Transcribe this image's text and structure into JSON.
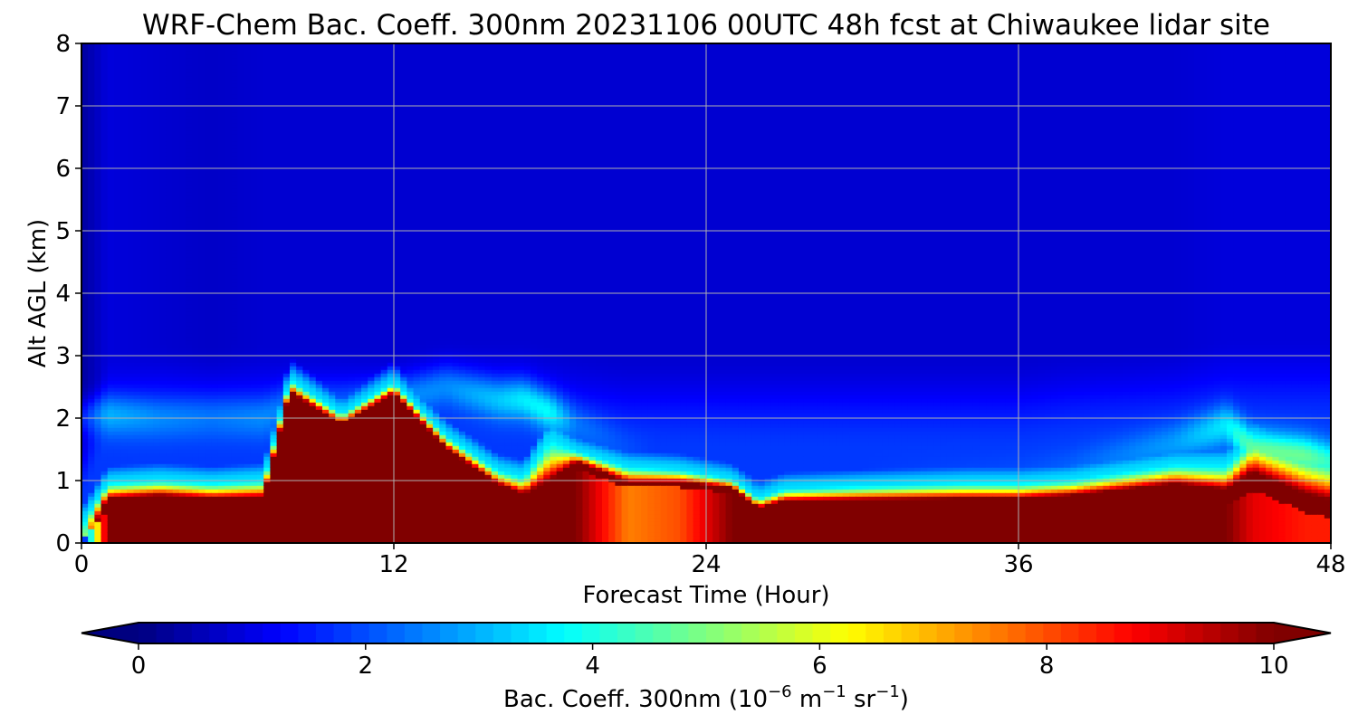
{
  "chart_data": {
    "type": "heatmap",
    "title": "WRF-Chem Bac. Coeff. 300nm  20231106 00UTC 48h fcst at Chiwaukee lidar site",
    "xlabel": "Forecast Time (Hour)",
    "ylabel": "Alt AGL (km)",
    "xlim": [
      0,
      48
    ],
    "ylim": [
      0,
      8
    ],
    "xticks": [
      0,
      12,
      24,
      36,
      48
    ],
    "yticks": [
      0,
      1,
      2,
      3,
      4,
      5,
      6,
      7,
      8
    ],
    "grid": true,
    "colormap": "jet",
    "colorbar": {
      "label_prefix": "Bac. Coeff. 300nm  (10",
      "label_exp1": "−6",
      "label_mid": " m",
      "label_exp2": "−1",
      "label_mid2": " sr",
      "label_exp3": "−1",
      "label_suffix": ")",
      "range": [
        0,
        10
      ],
      "ticks": [
        "0",
        "2",
        "4",
        "6",
        "8",
        "10"
      ],
      "extend": "both",
      "orientation": "horizontal",
      "placement": "bottom"
    },
    "x": [
      0,
      1,
      3,
      5,
      7,
      8,
      10,
      12,
      14,
      16,
      17,
      18,
      19,
      21,
      23,
      25,
      26,
      27,
      30,
      34,
      36,
      38,
      42,
      44,
      45,
      47,
      48
    ],
    "y": [
      0,
      0.25,
      0.5,
      0.75,
      1.0,
      1.25,
      1.5,
      1.75,
      2.0,
      2.25,
      2.5,
      2.75,
      3.0,
      3.5,
      4.0,
      5.0,
      6.0,
      7.0,
      8.0
    ],
    "columns": {
      "surface_max": [
        0.5,
        10,
        10,
        10,
        10,
        10,
        10,
        10,
        10,
        10,
        10,
        10,
        10,
        7.5,
        8,
        10,
        10,
        10,
        10,
        10,
        10,
        10,
        10,
        10,
        9,
        8.5,
        8.5
      ],
      "surface_layer_top_km": [
        0.05,
        0.55,
        0.6,
        0.55,
        0.55,
        2.3,
        1.8,
        2.3,
        1.4,
        0.8,
        0.6,
        0.55,
        1.2,
        0.9,
        0.9,
        0.8,
        0.45,
        0.55,
        0.55,
        0.55,
        0.55,
        0.6,
        0.75,
        0.6,
        0.85,
        0.5,
        0.4
      ],
      "transition_depth_km": [
        0.3,
        0.45,
        0.45,
        0.45,
        0.5,
        0.35,
        0.3,
        0.3,
        0.35,
        0.4,
        0.5,
        1.2,
        0.3,
        0.35,
        0.3,
        0.25,
        0.3,
        0.35,
        0.4,
        0.45,
        0.45,
        0.45,
        0.55,
        0.7,
        0.9,
        1.0,
        1.0
      ],
      "aloft_layer_center_km": [
        2.0,
        2.05,
        2.0,
        2.0,
        2.0,
        2.2,
        2.2,
        2.3,
        2.5,
        2.3,
        2.3,
        2.1,
        1.9,
        1.5,
        1.2,
        1.0,
        0.9,
        0.9,
        1.0,
        1.0,
        1.1,
        1.2,
        1.6,
        1.9,
        1.5,
        1.4,
        1.3
      ],
      "aloft_layer_value": [
        1.5,
        3.0,
        2.6,
        2.4,
        2.6,
        2.4,
        2.2,
        2.6,
        2.6,
        3.2,
        3.6,
        3.8,
        2.4,
        2.0,
        1.6,
        1.5,
        1.5,
        1.6,
        1.8,
        2.0,
        2.0,
        2.2,
        2.8,
        3.6,
        4.8,
        4.8,
        4.2
      ],
      "background_lower_km": [
        0.6,
        1.6,
        1.7,
        1.7,
        1.7,
        1.7,
        1.7,
        1.6,
        1.8,
        1.8,
        1.8,
        1.7,
        1.6,
        1.5,
        1.5,
        1.5,
        1.5,
        1.5,
        1.5,
        1.5,
        1.5,
        1.6,
        1.7,
        1.8,
        1.8,
        1.8,
        1.8
      ],
      "background_upper": [
        0.3,
        0.9,
        0.8,
        0.7,
        0.8,
        0.8,
        0.8,
        0.8,
        0.8,
        0.8,
        0.8,
        0.8,
        0.8,
        0.8,
        0.8,
        0.8,
        0.8,
        0.8,
        0.8,
        0.8,
        0.8,
        0.8,
        0.8,
        0.9,
        0.9,
        0.9,
        0.9
      ]
    }
  }
}
